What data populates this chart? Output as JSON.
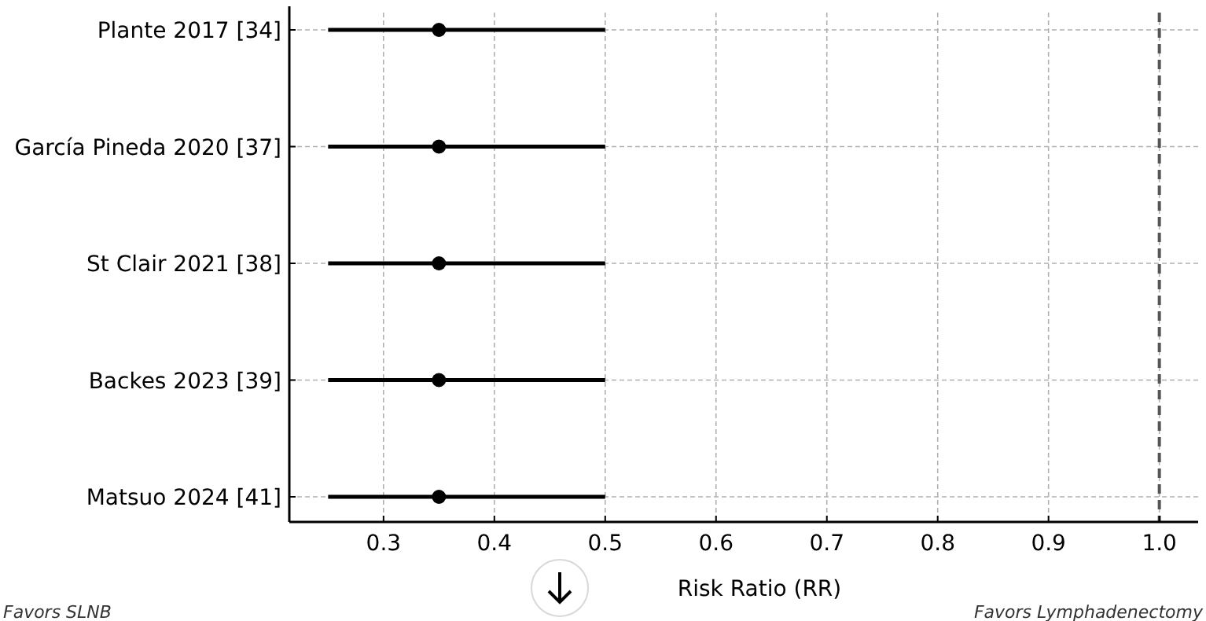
{
  "chart_data": {
    "type": "scatter",
    "orientation": "horizontal",
    "categories": [
      "Plante 2017 [34]",
      "García Pineda 2020 [37]",
      "St Clair 2021 [38]",
      "Backes 2023 [39]",
      "Matsuo 2024 [41]"
    ],
    "series": [
      {
        "color": "#000000",
        "values": [
          0.35,
          0.35,
          0.35,
          0.35,
          0.35
        ],
        "errors": [
          [
            0.25,
            0.5
          ],
          [
            0.25,
            0.5
          ],
          [
            0.25,
            0.5
          ],
          [
            0.25,
            0.5
          ],
          [
            0.25,
            0.5
          ]
        ]
      }
    ],
    "xlabel": "Risk Ratio (RR)",
    "xlim": [
      0.215,
      1.035
    ],
    "xticks": [
      {
        "value": 0.3,
        "label": "0.3"
      },
      {
        "value": 0.4,
        "label": "0.4"
      },
      {
        "value": 0.5,
        "label": "0.5"
      },
      {
        "value": 0.6,
        "label": "0.6"
      },
      {
        "value": 0.7,
        "label": "0.7"
      },
      {
        "value": 0.8,
        "label": "0.8"
      },
      {
        "value": 0.9,
        "label": "0.9"
      },
      {
        "value": 1.0,
        "label": "1.0"
      }
    ],
    "grid": true,
    "marker": "circle",
    "ref_lines": [
      {
        "axis": "x",
        "value": 1.0,
        "color": "#555555",
        "line_style": "dashed"
      }
    ],
    "annotations": [
      "Favors SLNB",
      "Favors Lymphadenectomy"
    ]
  }
}
